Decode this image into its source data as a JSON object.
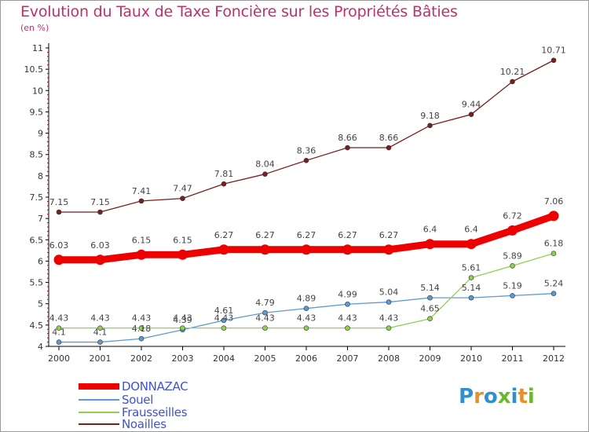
{
  "header": {
    "title": "Evolution du Taux de Taxe Foncière sur les Propriétés Bâties",
    "subtitle": "(en %)"
  },
  "logo": {
    "letters": [
      "P",
      "r",
      "o",
      "x",
      "i",
      "t",
      "i"
    ],
    "colors": [
      "#2f8fd0",
      "#e8902a",
      "#2f8fd0",
      "#6ab82e",
      "#2f8fd0",
      "#e8902a",
      "#6ab82e"
    ]
  },
  "colors": {
    "title": "#c0306a",
    "axis": "#000000",
    "legend_text": "#3f52d6",
    "grid": "#d8d8d8"
  },
  "chart_data": {
    "type": "line",
    "title": "Evolution du Taux de Taxe Foncière sur les Propriétés Bâties",
    "subtitle": "(en %)",
    "xlabel": "",
    "ylabel": "",
    "categories": [
      "2000",
      "2001",
      "2002",
      "2003",
      "2004",
      "2005",
      "2006",
      "2007",
      "2008",
      "2009",
      "2010",
      "2011",
      "2012"
    ],
    "ylim": [
      4,
      11
    ],
    "yticks": [
      "4",
      "4.5",
      "5",
      "5.5",
      "6",
      "6.5",
      "7",
      "7.5",
      "8",
      "8.5",
      "9",
      "9.5",
      "10",
      "10.5",
      "11"
    ],
    "grid": "none",
    "legend_position": "bottom-left",
    "series": [
      {
        "name": "DONNAZAC",
        "color": "#ee0000",
        "thick": true,
        "values": [
          6.03,
          6.03,
          6.15,
          6.15,
          6.27,
          6.27,
          6.27,
          6.27,
          6.27,
          6.4,
          6.4,
          6.72,
          7.06
        ],
        "labels": [
          "6.03",
          "6.03",
          "6.15",
          "6.15",
          "6.27",
          "6.27",
          "6.27",
          "6.27",
          "6.27",
          "6.4",
          "6.4",
          "6.72",
          "7.06"
        ]
      },
      {
        "name": "Souel",
        "color": "#5b9bd5",
        "thick": false,
        "values": [
          4.1,
          4.1,
          4.18,
          4.39,
          4.61,
          4.79,
          4.89,
          4.99,
          5.04,
          5.14,
          5.14,
          5.19,
          5.24
        ],
        "labels": [
          "4.1",
          "4.1",
          "4.18",
          "4.39",
          "4.61",
          "4.79",
          "4.89",
          "4.99",
          "5.04",
          "5.14",
          "5.14",
          "5.19",
          "5.24"
        ]
      },
      {
        "name": "Frausseilles",
        "color": "#8fd14f",
        "thick": false,
        "values": [
          4.43,
          4.43,
          4.43,
          4.43,
          4.43,
          4.43,
          4.43,
          4.43,
          4.43,
          4.65,
          5.61,
          5.89,
          6.18
        ],
        "labels": [
          "4.43",
          "4.43",
          "4.43",
          "4.43",
          "4.43",
          "4.43",
          "4.43",
          "4.43",
          "4.43",
          "4.65",
          "5.61",
          "5.89",
          "6.18"
        ]
      },
      {
        "name": "Noailles",
        "color": "#7a1f1f",
        "thick": false,
        "values": [
          7.15,
          7.15,
          7.41,
          7.47,
          7.81,
          8.04,
          8.36,
          8.66,
          8.66,
          9.18,
          9.44,
          10.21,
          10.71
        ],
        "labels": [
          "7.15",
          "7.15",
          "7.41",
          "7.47",
          "7.81",
          "8.04",
          "8.36",
          "8.66",
          "8.66",
          "9.18",
          "9.44",
          "10.21",
          "10.71"
        ]
      }
    ]
  }
}
